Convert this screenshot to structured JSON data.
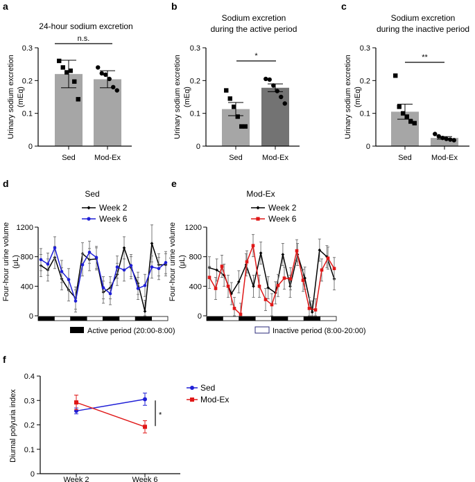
{
  "chart_data": [
    {
      "id": "a",
      "panel": "a",
      "type": "bar",
      "title": [
        "24-hour sodium excretion"
      ],
      "ylabel": [
        "Urinary sodium excretion",
        "(mEq)"
      ],
      "ylim": [
        0,
        0.3
      ],
      "yticks": [
        "0",
        "0.1",
        "0.2",
        "0.3"
      ],
      "categories": [
        "Sed",
        "Mod-Ex"
      ],
      "means": [
        0.22,
        0.204
      ],
      "errors": [
        0.042,
        0.026
      ],
      "bar_colors": [
        "#a6a6a6",
        "#a6a6a6"
      ],
      "points": [
        [
          0.26,
          0.24,
          0.225,
          0.23,
          0.197,
          0.143
        ],
        [
          0.24,
          0.222,
          0.218,
          0.205,
          0.18,
          0.17
        ]
      ],
      "markers": [
        "square",
        "circle"
      ],
      "sig": "n.s."
    },
    {
      "id": "b",
      "panel": "b",
      "type": "bar",
      "title": [
        "Sodium excretion",
        "during the active period"
      ],
      "ylabel": [
        "Urinary sodium excretion",
        "(mEq)"
      ],
      "ylim": [
        0,
        0.3
      ],
      "yticks": [
        "0",
        "0.1",
        "0.2",
        "0.3"
      ],
      "categories": [
        "Sed",
        "Mod-Ex"
      ],
      "means": [
        0.113,
        0.178
      ],
      "errors": [
        0.02,
        0.012
      ],
      "bar_colors": [
        "#a6a6a6",
        "#737373"
      ],
      "points": [
        [
          0.17,
          0.145,
          0.12,
          0.09,
          0.06,
          0.06
        ],
        [
          0.205,
          0.203,
          0.185,
          0.168,
          0.15,
          0.13
        ]
      ],
      "markers": [
        "square",
        "circle"
      ],
      "sig": "*"
    },
    {
      "id": "c",
      "panel": "c",
      "type": "bar",
      "title": [
        "Sodium excretion",
        "during the inactive period"
      ],
      "ylabel": [
        "Urinary sodium excretion",
        "(mEq)"
      ],
      "ylim": [
        0,
        0.3
      ],
      "yticks": [
        "0",
        "0.1",
        "0.2",
        "0.3"
      ],
      "categories": [
        "Sed",
        "Mod-Ex"
      ],
      "means": [
        0.105,
        0.025
      ],
      "errors": [
        0.023,
        0.004
      ],
      "bar_colors": [
        "#a6a6a6",
        "#a6a6a6"
      ],
      "points": [
        [
          0.215,
          0.12,
          0.1,
          0.09,
          0.075,
          0.07
        ],
        [
          0.037,
          0.03,
          0.025,
          0.022,
          0.02,
          0.018
        ]
      ],
      "markers": [
        "square",
        "circle"
      ],
      "sig": "**"
    },
    {
      "id": "d",
      "panel": "d",
      "type": "line",
      "title": [
        "Sed"
      ],
      "ylabel": [
        "Four-hour urine volume",
        "(μL)"
      ],
      "ylim": [
        0,
        1200
      ],
      "yticks": [
        "0",
        "400",
        "800",
        "1200"
      ],
      "series": [
        {
          "name": "Week 2",
          "color": "#000000",
          "marker": "diamond",
          "values": [
            680,
            620,
            790,
            500,
            350,
            240,
            840,
            760,
            770,
            320,
            380,
            560,
            920,
            650,
            440,
            60,
            980,
            690,
            690
          ],
          "errors": [
            150,
            150,
            150,
            150,
            150,
            150,
            150,
            150,
            150,
            150,
            150,
            150,
            150,
            150,
            150,
            150,
            250,
            150,
            150
          ]
        },
        {
          "name": "Week 6",
          "color": "#1f1fd6",
          "marker": "circle",
          "values": [
            760,
            700,
            920,
            600,
            490,
            200,
            690,
            860,
            790,
            380,
            300,
            660,
            620,
            680,
            370,
            410,
            660,
            640,
            720
          ],
          "errors": [
            150,
            150,
            150,
            150,
            150,
            150,
            150,
            150,
            150,
            150,
            150,
            150,
            150,
            150,
            150,
            150,
            150,
            150,
            150
          ]
        }
      ],
      "legend_position": "top-right"
    },
    {
      "id": "e",
      "panel": "e",
      "type": "line",
      "title": [
        "Mod-Ex"
      ],
      "ylabel": [
        "Four-hour urine volume",
        "(μL)"
      ],
      "ylim": [
        0,
        1200
      ],
      "yticks": [
        "0",
        "400",
        "800",
        "1200"
      ],
      "series": [
        {
          "name": "Week 2",
          "color": "#000000",
          "marker": "diamond",
          "values": [
            650,
            620,
            550,
            300,
            460,
            690,
            400,
            850,
            380,
            310,
            830,
            400,
            830,
            510,
            50,
            890,
            800,
            500
          ],
          "errors": [
            150,
            150,
            150,
            150,
            150,
            150,
            150,
            150,
            150,
            150,
            150,
            150,
            150,
            150,
            150,
            150,
            150,
            150
          ]
        },
        {
          "name": "Week 6",
          "color": "#e01818",
          "marker": "square",
          "values": [
            520,
            370,
            670,
            400,
            100,
            20,
            730,
            950,
            400,
            220,
            150,
            410,
            510,
            500,
            880,
            480,
            100,
            80,
            620,
            780,
            640
          ],
          "errors": [
            150,
            150,
            150,
            150,
            150,
            150,
            150,
            150,
            150,
            150,
            150,
            150,
            150,
            150,
            150,
            150,
            150,
            150,
            150,
            150,
            150
          ]
        }
      ],
      "legend_position": "top-right"
    },
    {
      "id": "f",
      "panel": "f",
      "type": "line",
      "title": [],
      "ylabel": [
        "Diurnal polyuria index"
      ],
      "ylim": [
        0,
        0.4
      ],
      "yticks": [
        "0",
        "0.1",
        "0.2",
        "0.3",
        "0.4"
      ],
      "categories": [
        "Week 2",
        "Week 6"
      ],
      "series": [
        {
          "name": "Sed",
          "color": "#1f1fd6",
          "marker": "circle",
          "values": [
            0.257,
            0.305
          ],
          "errors": [
            0.012,
            0.025
          ]
        },
        {
          "name": "Mod-Ex",
          "color": "#e01818",
          "marker": "square",
          "values": [
            0.292,
            0.192
          ],
          "errors": [
            0.03,
            0.025
          ]
        }
      ],
      "sig": "*",
      "legend_position": "right"
    }
  ],
  "period_legend": {
    "active": "Active period (20:00-8:00)",
    "inactive": "Inactive period (8:00-20:00)"
  }
}
